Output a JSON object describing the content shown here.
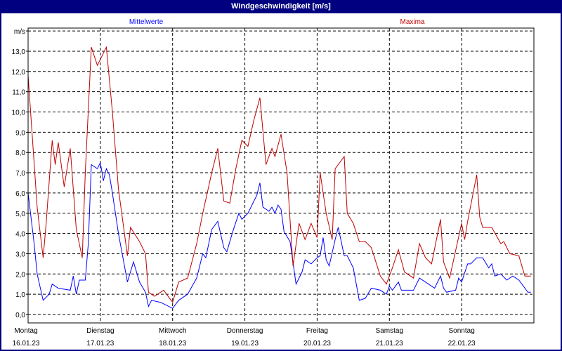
{
  "window": {
    "title": "Windgeschwindigkeit [m/s]"
  },
  "chart_data": {
    "type": "line",
    "title": "Windgeschwindigkeit [m/s]",
    "ylabel": "m/s",
    "ylim": [
      -0.4,
      14.3
    ],
    "yticks": [
      {
        "v": 0,
        "label": "0,0"
      },
      {
        "v": 1,
        "label": "1,0"
      },
      {
        "v": 2,
        "label": "2,0"
      },
      {
        "v": 3,
        "label": "3,0"
      },
      {
        "v": 4,
        "label": "4,0"
      },
      {
        "v": 5,
        "label": "5,0"
      },
      {
        "v": 6,
        "label": "6,0"
      },
      {
        "v": 7,
        "label": "7,0"
      },
      {
        "v": 8,
        "label": "8,0"
      },
      {
        "v": 9,
        "label": "9,0"
      },
      {
        "v": 10,
        "label": "10,0"
      },
      {
        "v": 11,
        "label": "11,0"
      },
      {
        "v": 12,
        "label": "12,0"
      },
      {
        "v": 13,
        "label": "13,0"
      },
      {
        "v": 14,
        "label": "m/s"
      }
    ],
    "xlim": [
      "16.01.23 00:00",
      "23.01.23 00:00"
    ],
    "xticks": [
      {
        "day": "Montag",
        "date": "16.01.23"
      },
      {
        "day": "Dienstag",
        "date": "17.01.23"
      },
      {
        "day": "Mittwoch",
        "date": "18.01.23"
      },
      {
        "day": "Donnerstag",
        "date": "19.01.23"
      },
      {
        "day": "Freitag",
        "date": "20.01.23"
      },
      {
        "day": "Samstag",
        "date": "21.01.23"
      },
      {
        "day": "Sonntag",
        "date": "22.01.23"
      }
    ],
    "grid": true,
    "legend_placement": "top",
    "series": [
      {
        "name": "Mittelwerte",
        "color": "#0000ff",
        "points": [
          [
            "16.01.23 00:00",
            6.0
          ],
          [
            "16.01.23 02:00",
            3.5
          ],
          [
            "16.01.23 03:00",
            2.0
          ],
          [
            "16.01.23 05:00",
            0.7
          ],
          [
            "16.01.23 07:00",
            1.0
          ],
          [
            "16.01.23 08:00",
            1.5
          ],
          [
            "16.01.23 10:00",
            1.3
          ],
          [
            "16.01.23 14:00",
            1.2
          ],
          [
            "16.01.23 15:00",
            1.9
          ],
          [
            "16.01.23 16:00",
            1.0
          ],
          [
            "16.01.23 17:00",
            1.7
          ],
          [
            "16.01.23 19:00",
            1.7
          ],
          [
            "16.01.23 20:00",
            3.5
          ],
          [
            "16.01.23 21:00",
            7.4
          ],
          [
            "16.01.23 23:00",
            7.2
          ],
          [
            "17.01.23 00:00",
            7.5
          ],
          [
            "17.01.23 01:00",
            6.6
          ],
          [
            "17.01.23 02:00",
            7.2
          ],
          [
            "17.01.23 03:00",
            6.9
          ],
          [
            "17.01.23 04:00",
            6.0
          ],
          [
            "17.01.23 06:00",
            4.0
          ],
          [
            "17.01.23 09:00",
            1.6
          ],
          [
            "17.01.23 11:00",
            2.6
          ],
          [
            "17.01.23 13:00",
            1.6
          ],
          [
            "17.01.23 15:00",
            1.1
          ],
          [
            "17.01.23 16:00",
            0.4
          ],
          [
            "17.01.23 17:00",
            0.7
          ],
          [
            "17.01.23 20:00",
            0.6
          ],
          [
            "18.01.23 00:00",
            0.3
          ],
          [
            "18.01.23 02:00",
            0.7
          ],
          [
            "18.01.23 05:00",
            1.0
          ],
          [
            "18.01.23 08:00",
            1.8
          ],
          [
            "18.01.23 10:00",
            3.0
          ],
          [
            "18.01.23 11:00",
            2.8
          ],
          [
            "18.01.23 13:00",
            4.2
          ],
          [
            "18.01.23 15:00",
            4.6
          ],
          [
            "18.01.23 17:00",
            3.3
          ],
          [
            "18.01.23 18:00",
            3.1
          ],
          [
            "18.01.23 20:00",
            4.1
          ],
          [
            "18.01.23 22:00",
            5.0
          ],
          [
            "18.01.23 23:00",
            4.7
          ],
          [
            "19.01.23 01:00",
            5.0
          ],
          [
            "19.01.23 04:00",
            5.9
          ],
          [
            "19.01.23 05:00",
            6.5
          ],
          [
            "19.01.23 06:00",
            5.3
          ],
          [
            "19.01.23 08:00",
            5.1
          ],
          [
            "19.01.23 09:00",
            5.3
          ],
          [
            "19.01.23 10:00",
            5.0
          ],
          [
            "19.01.23 11:00",
            5.4
          ],
          [
            "19.01.23 12:00",
            5.2
          ],
          [
            "19.01.23 13:00",
            4.1
          ],
          [
            "19.01.23 15:00",
            3.6
          ],
          [
            "19.01.23 17:00",
            1.5
          ],
          [
            "19.01.23 19:00",
            2.1
          ],
          [
            "19.01.23 20:00",
            2.7
          ],
          [
            "19.01.23 22:00",
            2.5
          ],
          [
            "20.01.23 00:00",
            2.8
          ],
          [
            "20.01.23 01:00",
            2.9
          ],
          [
            "20.01.23 02:00",
            3.8
          ],
          [
            "20.01.23 03:00",
            2.7
          ],
          [
            "20.01.23 04:00",
            2.4
          ],
          [
            "20.01.23 06:00",
            3.7
          ],
          [
            "20.01.23 07:00",
            4.3
          ],
          [
            "20.01.23 09:00",
            2.9
          ],
          [
            "20.01.23 10:00",
            2.9
          ],
          [
            "20.01.23 12:00",
            2.3
          ],
          [
            "20.01.23 14:00",
            0.7
          ],
          [
            "20.01.23 16:00",
            0.8
          ],
          [
            "20.01.23 18:00",
            1.3
          ],
          [
            "20.01.23 21:00",
            1.2
          ],
          [
            "20.01.23 23:00",
            1.0
          ],
          [
            "21.01.23 00:00",
            1.4
          ],
          [
            "21.01.23 01:00",
            1.2
          ],
          [
            "21.01.23 03:00",
            1.6
          ],
          [
            "21.01.23 04:00",
            1.2
          ],
          [
            "21.01.23 06:00",
            1.2
          ],
          [
            "21.01.23 08:00",
            1.2
          ],
          [
            "21.01.23 10:00",
            1.8
          ],
          [
            "21.01.23 13:00",
            1.5
          ],
          [
            "21.01.23 15:00",
            1.3
          ],
          [
            "21.01.23 17:00",
            1.9
          ],
          [
            "21.01.23 18:00",
            1.3
          ],
          [
            "21.01.23 19:00",
            1.1
          ],
          [
            "21.01.23 22:00",
            1.2
          ],
          [
            "21.01.23 23:00",
            1.8
          ],
          [
            "22.01.23 00:00",
            1.6
          ],
          [
            "22.01.23 02:00",
            2.5
          ],
          [
            "22.01.23 03:00",
            2.5
          ],
          [
            "22.01.23 05:00",
            2.8
          ],
          [
            "22.01.23 07:00",
            2.8
          ],
          [
            "22.01.23 09:00",
            2.3
          ],
          [
            "22.01.23 10:00",
            2.5
          ],
          [
            "22.01.23 11:00",
            1.9
          ],
          [
            "22.01.23 13:00",
            2.0
          ],
          [
            "22.01.23 15:00",
            1.7
          ],
          [
            "22.01.23 17:00",
            1.9
          ],
          [
            "22.01.23 19:00",
            1.7
          ],
          [
            "22.01.23 20:00",
            1.5
          ],
          [
            "22.01.23 22:00",
            1.1
          ],
          [
            "22.01.23 23:00",
            1.1
          ]
        ]
      },
      {
        "name": "Maxima",
        "color": "#c00000",
        "points": [
          [
            "16.01.23 00:00",
            11.8
          ],
          [
            "16.01.23 03:00",
            5.3
          ],
          [
            "16.01.23 05:00",
            2.8
          ],
          [
            "16.01.23 06:00",
            4.5
          ],
          [
            "16.01.23 08:00",
            8.6
          ],
          [
            "16.01.23 09:00",
            7.4
          ],
          [
            "16.01.23 10:00",
            8.5
          ],
          [
            "16.01.23 12:00",
            6.3
          ],
          [
            "16.01.23 14:00",
            8.2
          ],
          [
            "16.01.23 16:00",
            4.2
          ],
          [
            "16.01.23 18:00",
            2.8
          ],
          [
            "16.01.23 19:00",
            7.0
          ],
          [
            "16.01.23 21:00",
            13.2
          ],
          [
            "16.01.23 23:00",
            12.3
          ],
          [
            "17.01.23 02:00",
            13.2
          ],
          [
            "17.01.23 04:00",
            10.0
          ],
          [
            "17.01.23 06:00",
            6.2
          ],
          [
            "17.01.23 09:00",
            2.9
          ],
          [
            "17.01.23 10:00",
            4.3
          ],
          [
            "17.01.23 13:00",
            3.6
          ],
          [
            "17.01.23 15:00",
            3.0
          ],
          [
            "17.01.23 16:00",
            1.1
          ],
          [
            "17.01.23 18:00",
            0.9
          ],
          [
            "17.01.23 21:00",
            1.2
          ],
          [
            "18.01.23 00:00",
            0.6
          ],
          [
            "18.01.23 02:00",
            1.6
          ],
          [
            "18.01.23 05:00",
            1.8
          ],
          [
            "18.01.23 08:00",
            3.5
          ],
          [
            "18.01.23 10:00",
            5.0
          ],
          [
            "18.01.23 13:00",
            7.0
          ],
          [
            "18.01.23 15:00",
            8.2
          ],
          [
            "18.01.23 17:00",
            5.6
          ],
          [
            "18.01.23 19:00",
            5.5
          ],
          [
            "18.01.23 21:00",
            7.2
          ],
          [
            "18.01.23 23:00",
            8.6
          ],
          [
            "19.01.23 01:00",
            8.3
          ],
          [
            "19.01.23 03:00",
            9.6
          ],
          [
            "19.01.23 05:00",
            10.7
          ],
          [
            "19.01.23 07:00",
            7.4
          ],
          [
            "19.01.23 09:00",
            8.2
          ],
          [
            "19.01.23 10:00",
            7.8
          ],
          [
            "19.01.23 12:00",
            8.9
          ],
          [
            "19.01.23 14:00",
            7.0
          ],
          [
            "19.01.23 16:00",
            2.4
          ],
          [
            "19.01.23 18:00",
            4.5
          ],
          [
            "19.01.23 20:00",
            3.7
          ],
          [
            "19.01.23 22:00",
            4.5
          ],
          [
            "20.01.23 00:00",
            3.8
          ],
          [
            "20.01.23 01:00",
            7.0
          ],
          [
            "20.01.23 03:00",
            5.0
          ],
          [
            "20.01.23 05:00",
            3.7
          ],
          [
            "20.01.23 06:00",
            7.2
          ],
          [
            "20.01.23 09:00",
            7.8
          ],
          [
            "20.01.23 10:00",
            5.0
          ],
          [
            "20.01.23 12:00",
            4.5
          ],
          [
            "20.01.23 14:00",
            3.6
          ],
          [
            "20.01.23 16:00",
            3.6
          ],
          [
            "20.01.23 18:00",
            3.3
          ],
          [
            "20.01.23 21:00",
            1.9
          ],
          [
            "20.01.23 23:00",
            1.5
          ],
          [
            "21.01.23 01:00",
            2.3
          ],
          [
            "21.01.23 03:00",
            3.2
          ],
          [
            "21.01.23 05:00",
            2.1
          ],
          [
            "21.01.23 08:00",
            1.8
          ],
          [
            "21.01.23 10:00",
            3.5
          ],
          [
            "21.01.23 12:00",
            2.8
          ],
          [
            "21.01.23 14:00",
            2.5
          ],
          [
            "21.01.23 17:00",
            4.7
          ],
          [
            "21.01.23 18:00",
            2.6
          ],
          [
            "21.01.23 20:00",
            1.8
          ],
          [
            "22.01.23 00:00",
            4.5
          ],
          [
            "22.01.23 01:00",
            3.7
          ],
          [
            "22.01.23 02:00",
            4.6
          ],
          [
            "22.01.23 05:00",
            6.9
          ],
          [
            "22.01.23 06:00",
            4.8
          ],
          [
            "22.01.23 07:00",
            4.3
          ],
          [
            "22.01.23 10:00",
            4.3
          ],
          [
            "22.01.23 13:00",
            3.5
          ],
          [
            "22.01.23 14:00",
            3.6
          ],
          [
            "22.01.23 16:00",
            3.0
          ],
          [
            "22.01.23 19:00",
            2.9
          ],
          [
            "22.01.23 21:00",
            1.9
          ],
          [
            "22.01.23 23:00",
            1.9
          ]
        ]
      }
    ]
  }
}
